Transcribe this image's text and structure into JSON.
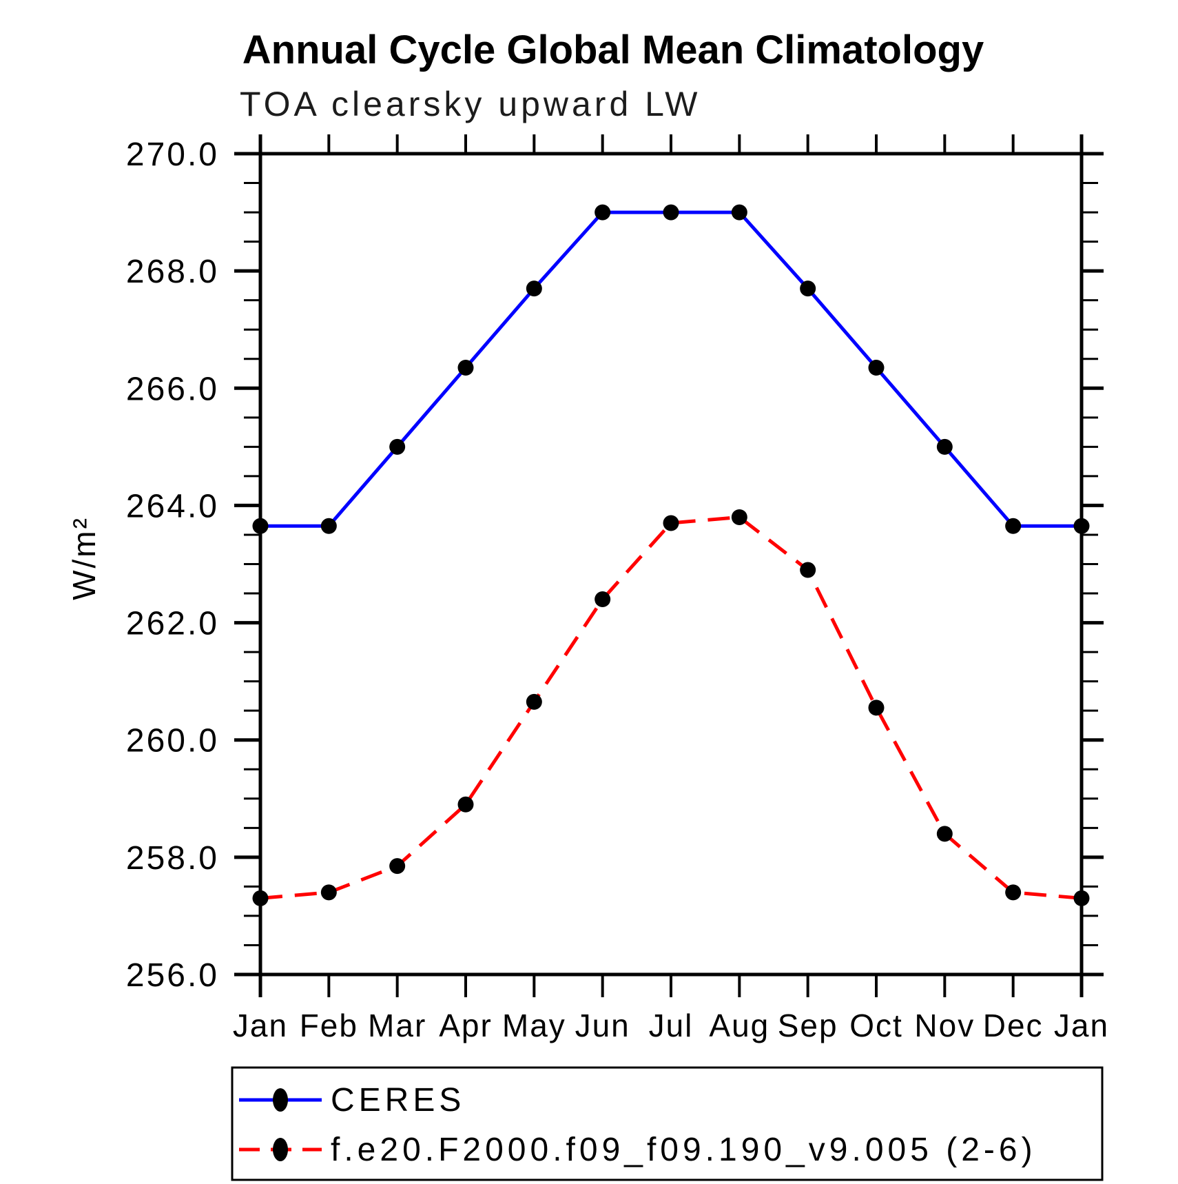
{
  "chart_data": {
    "type": "line",
    "title": "Annual Cycle Global Mean Climatology",
    "subtitle": "TOA clearsky upward LW",
    "ylabel": "W/m²",
    "xlabel": "",
    "x_categories": [
      "Jan",
      "Feb",
      "Mar",
      "Apr",
      "May",
      "Jun",
      "Jul",
      "Aug",
      "Sep",
      "Oct",
      "Nov",
      "Dec",
      "Jan"
    ],
    "ylim": [
      256.0,
      270.0
    ],
    "y_major_tick_step": 2.0,
    "y_minor_tick_step": 0.5,
    "y_tick_labels": [
      "256.0",
      "258.0",
      "260.0",
      "262.0",
      "264.0",
      "266.0",
      "268.0",
      "270.0"
    ],
    "grid": "off",
    "legend_position": "bottom-left-box",
    "marker": {
      "shape": "filled-circle",
      "color": "#000000"
    },
    "series": [
      {
        "name": "CERES",
        "color": "#0000ff",
        "line_style": "solid",
        "values": [
          263.65,
          263.65,
          265.0,
          266.35,
          267.7,
          269.0,
          269.0,
          269.0,
          267.7,
          266.35,
          265.0,
          263.65,
          263.65
        ]
      },
      {
        "name": "f.e20.F2000.f09_f09.190_v9.005 (2-6)",
        "color": "#ff0000",
        "line_style": "dashed",
        "values": [
          257.3,
          257.4,
          257.85,
          258.9,
          260.65,
          262.4,
          263.7,
          263.8,
          262.9,
          260.55,
          258.4,
          257.4,
          257.3
        ]
      }
    ]
  }
}
